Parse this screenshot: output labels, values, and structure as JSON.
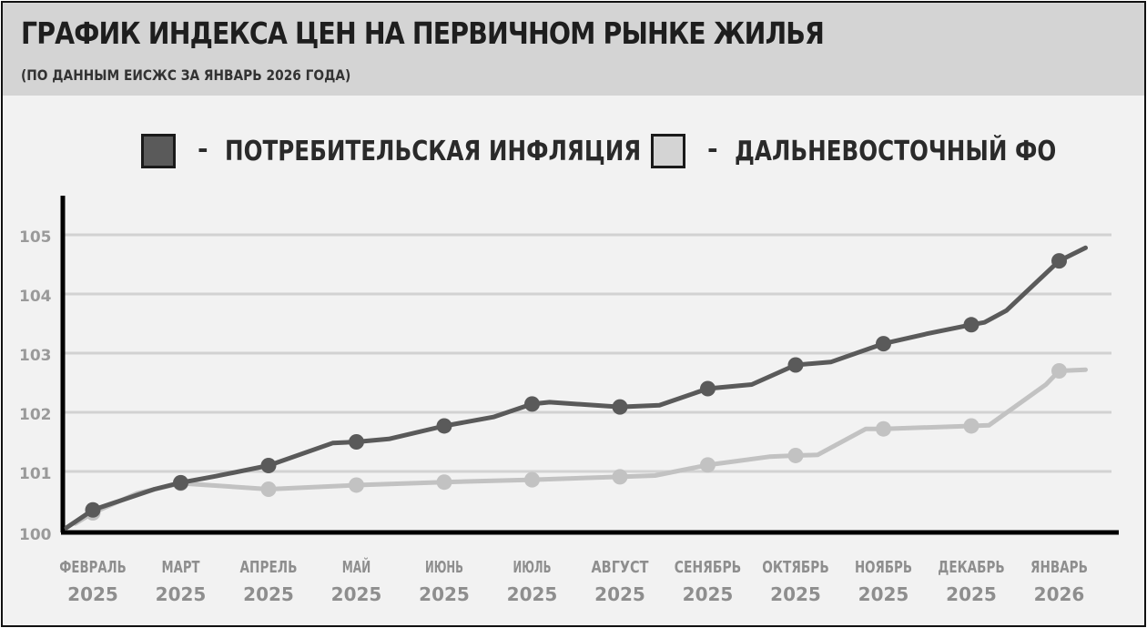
{
  "header": {
    "title": "ГРАФИК ИНДЕКСА ЦЕН НА ПЕРВИЧНОМ РЫНКЕ ЖИЛЬЯ",
    "subtitle": "(ПО ДАННЫМ ЕИСЖС ЗА ЯНВАРЬ 2026 ГОДА)"
  },
  "legend": {
    "dash": "-",
    "items": [
      {
        "label": "ПОТРЕБИТЕЛЬСКАЯ ИНФЛЯЦИЯ",
        "color": "#5a5a5a"
      },
      {
        "label": "ДАЛЬНЕВОСТОЧНЫЙ ФО",
        "color": "#d4d4d4"
      }
    ]
  },
  "chart_data": {
    "type": "line",
    "categories": [
      [
        "ФЕВРАЛЬ",
        "2025"
      ],
      [
        "МАРТ",
        "2025"
      ],
      [
        "АПРЕЛЬ",
        "2025"
      ],
      [
        "МАЙ",
        "2025"
      ],
      [
        "ИЮНЬ",
        "2025"
      ],
      [
        "ИЮЛЬ",
        "2025"
      ],
      [
        "АВГУСТ",
        "2025"
      ],
      [
        "СЕНЯБРЬ",
        "2025"
      ],
      [
        "ОКТЯБРЬ",
        "2025"
      ],
      [
        "НОЯБРЬ",
        "2025"
      ],
      [
        "ДЕКАБРЬ",
        "2025"
      ],
      [
        "ЯНВАРЬ",
        "2026"
      ]
    ],
    "yticks": [
      "100",
      "101",
      "102",
      "103",
      "104",
      "105"
    ],
    "ylim": [
      100,
      105.7
    ],
    "grid": true,
    "series": [
      {
        "name": "ПОТРЕБИТЕЛЬСКАЯ ИНФЛЯЦИЯ",
        "color": "#5a5a5a",
        "values": [
          100.35,
          100.81,
          101.1,
          101.5,
          101.77,
          102.14,
          102.09,
          102.4,
          102.8,
          103.16,
          103.48,
          104.56
        ],
        "path": [
          [
            -0.3,
            100.05
          ],
          [
            0,
            100.35
          ],
          [
            0.7,
            100.7
          ],
          [
            1,
            100.81
          ],
          [
            1.4,
            100.92
          ],
          [
            2,
            101.1
          ],
          [
            2.73,
            101.48
          ],
          [
            3,
            101.5
          ],
          [
            3.37,
            101.55
          ],
          [
            4,
            101.77
          ],
          [
            4.56,
            101.92
          ],
          [
            5,
            102.14
          ],
          [
            5.2,
            102.17
          ],
          [
            6,
            102.09
          ],
          [
            6.45,
            102.12
          ],
          [
            7,
            102.4
          ],
          [
            7.5,
            102.47
          ],
          [
            8,
            102.8
          ],
          [
            8.4,
            102.85
          ],
          [
            9,
            103.16
          ],
          [
            9.5,
            103.33
          ],
          [
            10,
            103.48
          ],
          [
            10.15,
            103.52
          ],
          [
            10.4,
            103.72
          ],
          [
            11,
            104.56
          ],
          [
            11.3,
            104.78
          ]
        ]
      },
      {
        "name": "ДАЛЬНЕВОСТОЧНЫЙ ФО",
        "color": "#c2c2c2",
        "values": [
          100.3,
          100.8,
          100.7,
          100.77,
          100.82,
          100.86,
          100.91,
          101.11,
          101.27,
          101.72,
          101.77,
          102.7
        ],
        "path": [
          [
            -0.2,
            100.12
          ],
          [
            0,
            100.3
          ],
          [
            0.5,
            100.63
          ],
          [
            1,
            100.8
          ],
          [
            2,
            100.7
          ],
          [
            3,
            100.77
          ],
          [
            4,
            100.82
          ],
          [
            5,
            100.86
          ],
          [
            6,
            100.91
          ],
          [
            6.4,
            100.93
          ],
          [
            7,
            101.11
          ],
          [
            7.7,
            101.25
          ],
          [
            8,
            101.27
          ],
          [
            8.25,
            101.28
          ],
          [
            8.8,
            101.72
          ],
          [
            9,
            101.72
          ],
          [
            10,
            101.77
          ],
          [
            10.2,
            101.78
          ],
          [
            10.85,
            102.47
          ],
          [
            11,
            102.7
          ],
          [
            11.3,
            102.72
          ]
        ]
      }
    ]
  }
}
